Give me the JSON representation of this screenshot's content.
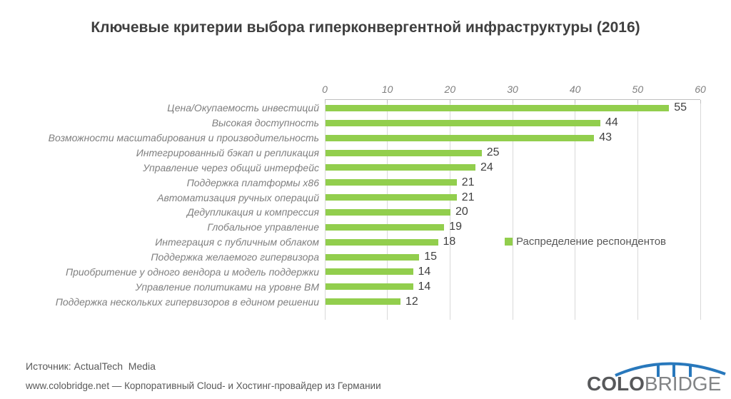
{
  "title": "Ключевые критерии выбора гиперконвергентной инфраструктуры (2016)",
  "chart_data": {
    "type": "bar",
    "orientation": "horizontal",
    "title": "Ключевые критерии выбора гиперконвергентной инфраструктуры (2016)",
    "categories": [
      "Цена/Окупаемость инвестиций",
      "Высокая доступность",
      "Возможности масштабирования и производительность",
      "Интегрированный бэкап и репликация",
      "Управление через общий интерфейс",
      "Поддержка платформы x86",
      "Автоматизация ручных операций",
      "Дедупликация и компрессия",
      "Глобальное управление",
      "Интеграция с публичным облаком",
      "Поддержка желаемого гипервизора",
      "Приобритение у одного вендора и модель поддержки",
      "Управление политиками на уровне ВМ",
      "Поддержка нескольких гипервизоров в едином решении"
    ],
    "values": [
      55,
      44,
      43,
      25,
      24,
      21,
      21,
      20,
      19,
      18,
      15,
      14,
      14,
      12
    ],
    "series_name": "Распределение респондентов",
    "xlim": [
      0,
      60
    ],
    "x_ticks": [
      0,
      10,
      20,
      30,
      40,
      50,
      60
    ],
    "axis_position": "top",
    "grid": true,
    "bar_color": "#92ce4d",
    "legend_position": "middle-right"
  },
  "legend": {
    "label": "Распределение респондентов",
    "swatch_color": "#92ce4d"
  },
  "footer": {
    "source": "Источник: ActualTech  Media",
    "tagline": "www.colobridge.net — Корпоративный Cloud- и Хостинг-провайдер из Германии"
  },
  "logo": {
    "part1": "COLO",
    "part2": "BRIDGE",
    "bridge_color": "#2878bc"
  }
}
